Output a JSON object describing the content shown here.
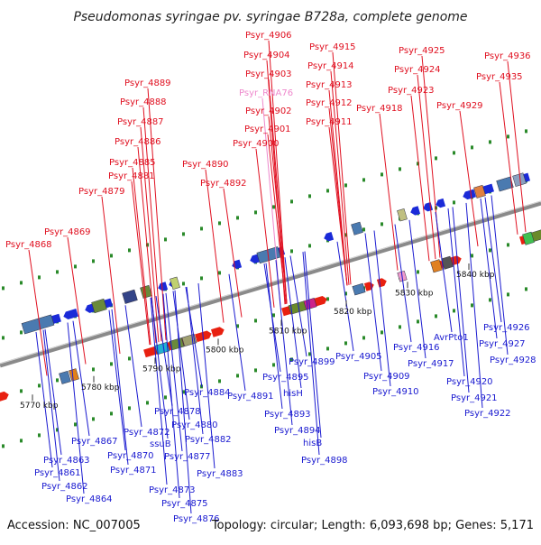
{
  "title": "Pseudomonas syringae pv. syringae B728a, complete genome",
  "accession_text": "Accession: NC_007005",
  "summary_text": "Topology: circular; Length: 6,093,698 bp; Genes: 5,171",
  "colors": {
    "forward_label": "#e01020",
    "reverse_label": "#1a1ad0",
    "rna_label": "#ee88cc",
    "backbone": "#8a8a8a",
    "track_dots": "#2a8a2a"
  },
  "ticks": [
    "5770 kbp",
    "5780 kbp",
    "5790 kbp",
    "5800 kbp",
    "5810 kbp",
    "5820 kbp",
    "5830 kbp",
    "5840 kbp"
  ],
  "forward_genes": [
    "Psyr_4868",
    "Psyr_4869",
    "Psyr_4879",
    "Psyr_4881",
    "Psyr_4885",
    "Psyr_4886",
    "Psyr_4887",
    "Psyr_4888",
    "Psyr_4889",
    "Psyr_4890",
    "Psyr_4892",
    "Psyr_4900",
    "Psyr_4901",
    "Psyr_4902",
    "Psyr_RNA76",
    "Psyr_4903",
    "Psyr_4904",
    "Psyr_4906",
    "Psyr_4911",
    "Psyr_4912",
    "Psyr_4913",
    "Psyr_4914",
    "Psyr_4915",
    "Psyr_4918",
    "Psyr_4923",
    "Psyr_4924",
    "Psyr_4925",
    "Psyr_4929",
    "Psyr_4935",
    "Psyr_4936"
  ],
  "reverse_genes": [
    "Psyr_4867",
    "Psyr_4863",
    "Psyr_4861",
    "Psyr_4862",
    "Psyr_4864",
    "Psyr_4870",
    "Psyr_4871",
    "Psyr_4872",
    "ssuB",
    "Psyr_4873",
    "Psyr_4875",
    "Psyr_4876",
    "Psyr_4877",
    "Psyr_4878",
    "Psyr_4880",
    "Psyr_4882",
    "Psyr_4883",
    "Psyr_4884",
    "Psyr_4891",
    "Psyr_4893",
    "Psyr_4894",
    "Psyr_4895",
    "hisH",
    "hisB",
    "Psyr_4898",
    "Psyr_4899",
    "Psyr_4905",
    "Psyr_4909",
    "Psyr_4910",
    "Psyr_4916",
    "Psyr_4917",
    "AvrPto1",
    "Psyr_4920",
    "Psyr_4921",
    "Psyr_4922",
    "Psyr_4926",
    "Psyr_4927",
    "Psyr_4928"
  ]
}
